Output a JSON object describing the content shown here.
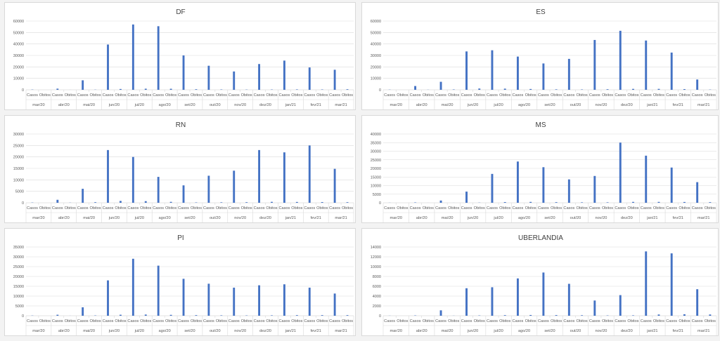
{
  "colors": {
    "bar": "#4472c4",
    "grid": "#d9d9d9",
    "axis_text": "#595959",
    "title": "#404040"
  },
  "sub_labels": [
    "Casos",
    "Obitos"
  ],
  "months": [
    "mar/20",
    "abr/20",
    "mai/20",
    "jun/20",
    "jul/20",
    "ago/20",
    "set/20",
    "out/20",
    "nov/20",
    "dez/20",
    "jan/21",
    "fev/21",
    "mar/21"
  ],
  "chart_data": [
    {
      "type": "bar",
      "title": "DF",
      "yticks": [
        "0",
        "10000",
        "20000",
        "30000",
        "40000",
        "50000",
        "60000"
      ],
      "ylim": [
        0,
        60000
      ],
      "grid": true,
      "series": [
        {
          "name": "Casos",
          "values": [
            200,
            1000,
            8300,
            39500,
            57000,
            55500,
            30000,
            21000,
            16000,
            22500,
            25500,
            19500,
            17500
          ]
        },
        {
          "name": "Obitos",
          "values": [
            0,
            20,
            150,
            700,
            950,
            900,
            500,
            300,
            200,
            250,
            350,
            300,
            500
          ]
        }
      ]
    },
    {
      "type": "bar",
      "title": "ES",
      "yticks": [
        "0",
        "10000",
        "20000",
        "30000",
        "40000",
        "50000",
        "60000"
      ],
      "ylim": [
        0,
        60000
      ],
      "grid": true,
      "series": [
        {
          "name": "Casos",
          "values": [
            150,
            3300,
            7000,
            33500,
            34500,
            29000,
            23000,
            27000,
            43500,
            51500,
            43000,
            32500,
            9000
          ]
        },
        {
          "name": "Obitos",
          "values": [
            0,
            100,
            300,
            1100,
            1000,
            700,
            400,
            300,
            500,
            800,
            800,
            600,
            200
          ]
        }
      ]
    },
    {
      "type": "bar",
      "title": "RN",
      "yticks": [
        "0",
        "5000",
        "10000",
        "15000",
        "20000",
        "25000",
        "30000"
      ],
      "ylim": [
        0,
        30000
      ],
      "grid": true,
      "series": [
        {
          "name": "Casos",
          "values": [
            100,
            1300,
            6100,
            23000,
            20000,
            11300,
            7600,
            11800,
            14000,
            23000,
            22000,
            25000,
            14800
          ]
        },
        {
          "name": "Obitos",
          "values": [
            0,
            60,
            250,
            800,
            700,
            400,
            150,
            200,
            250,
            400,
            350,
            300,
            250
          ]
        }
      ]
    },
    {
      "type": "bar",
      "title": "MS",
      "yticks": [
        "0",
        "5000",
        "10000",
        "15000",
        "20000",
        "25000",
        "30000",
        "35000",
        "40000"
      ],
      "ylim": [
        0,
        40000
      ],
      "grid": true,
      "series": [
        {
          "name": "Casos",
          "values": [
            50,
            200,
            1300,
            6500,
            16800,
            24000,
            20700,
            13600,
            15600,
            35000,
            27400,
            20500,
            12000
          ]
        },
        {
          "name": "Obitos",
          "values": [
            0,
            10,
            20,
            100,
            400,
            500,
            350,
            250,
            250,
            500,
            500,
            450,
            350
          ]
        }
      ]
    },
    {
      "type": "bar",
      "title": "PI",
      "yticks": [
        "0",
        "5000",
        "10000",
        "15000",
        "20000",
        "25000",
        "30000",
        "35000"
      ],
      "ylim": [
        0,
        35000
      ],
      "grid": true,
      "series": [
        {
          "name": "Casos",
          "values": [
            100,
            500,
            4300,
            18000,
            29000,
            25500,
            18800,
            16300,
            14300,
            15500,
            16000,
            14300,
            11300
          ]
        },
        {
          "name": "Obitos",
          "values": [
            0,
            20,
            150,
            500,
            600,
            450,
            300,
            200,
            150,
            200,
            300,
            300,
            300
          ]
        }
      ]
    },
    {
      "type": "bar",
      "title": "UBERLANDIA",
      "yticks": [
        "0",
        "2000",
        "4000",
        "6000",
        "8000",
        "10000",
        "12000",
        "14000"
      ],
      "ylim": [
        0,
        14000
      ],
      "grid": true,
      "series": [
        {
          "name": "Casos",
          "values": [
            20,
            60,
            1100,
            5600,
            5800,
            7600,
            8800,
            6500,
            3100,
            4200,
            13100,
            12700,
            5400
          ]
        },
        {
          "name": "Obitos",
          "values": [
            0,
            0,
            20,
            60,
            120,
            150,
            130,
            100,
            60,
            80,
            250,
            300,
            250
          ]
        }
      ]
    }
  ]
}
